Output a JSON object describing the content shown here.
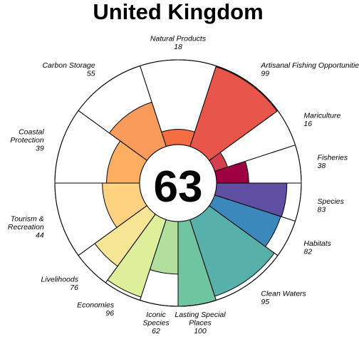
{
  "title": "United Kingdom",
  "score": "63",
  "chart_data": {
    "type": "flower",
    "title": "United Kingdom",
    "center_value": 63,
    "ylim": [
      0,
      100
    ],
    "goals": [
      {
        "lines": [
          "Fisheries"
        ],
        "value": 38,
        "color": "#9E0142",
        "weight": 0.5
      },
      {
        "lines": [
          "Mariculture"
        ],
        "value": 16,
        "color": "#D53E4F",
        "weight": 0.5
      },
      {
        "lines": [
          "Artisanal Fishing Opportunities"
        ],
        "value": 99,
        "color": "#E8554A",
        "weight": 1
      },
      {
        "lines": [
          "Natural Products"
        ],
        "value": 18,
        "color": "#F46D43",
        "weight": 1
      },
      {
        "lines": [
          "Carbon Storage"
        ],
        "value": 55,
        "color": "#F99B5A",
        "weight": 1
      },
      {
        "lines": [
          "Coastal",
          "Protection"
        ],
        "value": 39,
        "color": "#FDAE61",
        "weight": 1
      },
      {
        "lines": [
          "Tourism &",
          "Recreation"
        ],
        "value": 44,
        "color": "#FED280",
        "weight": 1
      },
      {
        "lines": [
          "Livelihoods"
        ],
        "value": 76,
        "color": "#F7E596",
        "weight": 0.5
      },
      {
        "lines": [
          "Economies"
        ],
        "value": 96,
        "color": "#DDEF9A",
        "weight": 0.5
      },
      {
        "lines": [
          "Iconic",
          "Species"
        ],
        "value": 62,
        "color": "#B3DF9E",
        "weight": 0.5
      },
      {
        "lines": [
          "Lasting Special",
          "Places"
        ],
        "value": 100,
        "color": "#6FC5A0",
        "weight": 0.5
      },
      {
        "lines": [
          "Clean Waters"
        ],
        "value": 95,
        "color": "#58B0AA",
        "weight": 1
      },
      {
        "lines": [
          "Habitats"
        ],
        "value": 82,
        "color": "#3A88BC",
        "weight": 0.5
      },
      {
        "lines": [
          "Species"
        ],
        "value": 83,
        "color": "#5E4FA2",
        "weight": 0.5
      }
    ]
  }
}
